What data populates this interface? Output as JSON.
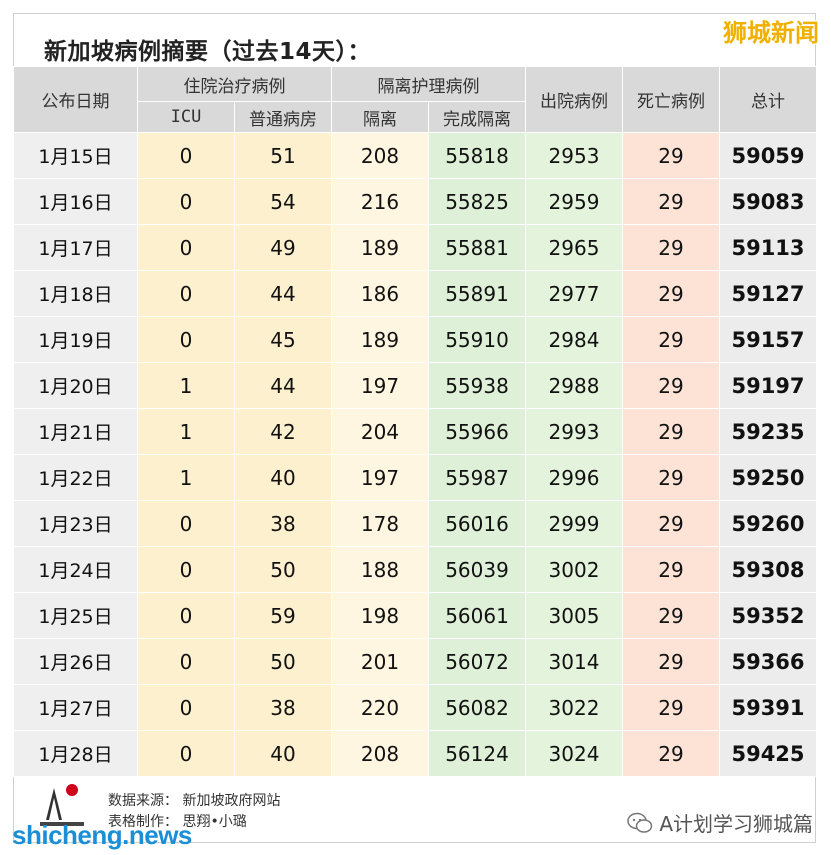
{
  "title": "新加坡病例摘要（过去14天）：",
  "brand": "狮城新闻",
  "header": {
    "date": "公布日期",
    "hospital_group": "住院治疗病例",
    "isolation_group": "隔离护理病例",
    "discharged": "出院病例",
    "deaths": "死亡病例",
    "total": "总计",
    "icu": "ICU",
    "ward": "普通病房",
    "isolation": "隔离",
    "completed": "完成隔离"
  },
  "rows": [
    {
      "date": "1月15日",
      "icu": "0",
      "ward": "51",
      "iso": "208",
      "done": "55818",
      "dis": "2953",
      "death": "29",
      "total": "59059"
    },
    {
      "date": "1月16日",
      "icu": "0",
      "ward": "54",
      "iso": "216",
      "done": "55825",
      "dis": "2959",
      "death": "29",
      "total": "59083"
    },
    {
      "date": "1月17日",
      "icu": "0",
      "ward": "49",
      "iso": "189",
      "done": "55881",
      "dis": "2965",
      "death": "29",
      "total": "59113"
    },
    {
      "date": "1月18日",
      "icu": "0",
      "ward": "44",
      "iso": "186",
      "done": "55891",
      "dis": "2977",
      "death": "29",
      "total": "59127"
    },
    {
      "date": "1月19日",
      "icu": "0",
      "ward": "45",
      "iso": "189",
      "done": "55910",
      "dis": "2984",
      "death": "29",
      "total": "59157"
    },
    {
      "date": "1月20日",
      "icu": "1",
      "ward": "44",
      "iso": "197",
      "done": "55938",
      "dis": "2988",
      "death": "29",
      "total": "59197"
    },
    {
      "date": "1月21日",
      "icu": "1",
      "ward": "42",
      "iso": "204",
      "done": "55966",
      "dis": "2993",
      "death": "29",
      "total": "59235"
    },
    {
      "date": "1月22日",
      "icu": "1",
      "ward": "40",
      "iso": "197",
      "done": "55987",
      "dis": "2996",
      "death": "29",
      "total": "59250"
    },
    {
      "date": "1月23日",
      "icu": "0",
      "ward": "38",
      "iso": "178",
      "done": "56016",
      "dis": "2999",
      "death": "29",
      "total": "59260"
    },
    {
      "date": "1月24日",
      "icu": "0",
      "ward": "50",
      "iso": "188",
      "done": "56039",
      "dis": "3002",
      "death": "29",
      "total": "59308"
    },
    {
      "date": "1月25日",
      "icu": "0",
      "ward": "59",
      "iso": "198",
      "done": "56061",
      "dis": "3005",
      "death": "29",
      "total": "59352"
    },
    {
      "date": "1月26日",
      "icu": "0",
      "ward": "50",
      "iso": "201",
      "done": "56072",
      "dis": "3014",
      "death": "29",
      "total": "59366"
    },
    {
      "date": "1月27日",
      "icu": "0",
      "ward": "38",
      "iso": "220",
      "done": "56082",
      "dis": "3022",
      "death": "29",
      "total": "59391"
    },
    {
      "date": "1月28日",
      "icu": "0",
      "ward": "40",
      "iso": "208",
      "done": "56124",
      "dis": "3024",
      "death": "29",
      "total": "59425"
    }
  ],
  "footer": {
    "source": "数据来源： 新加坡政府网站",
    "made_by": "表格制作： 思翔•小璐"
  },
  "site": "shicheng.news",
  "wechat_account": "A计划学习狮城篇",
  "colors": {
    "header_bg": "#d9d9d9",
    "hospital_bg": "#fdf0cf",
    "completed_bg": "#dff0d8",
    "death_bg": "#fde3d6",
    "brand": "#f0b000",
    "site": "#1a8ed6"
  }
}
